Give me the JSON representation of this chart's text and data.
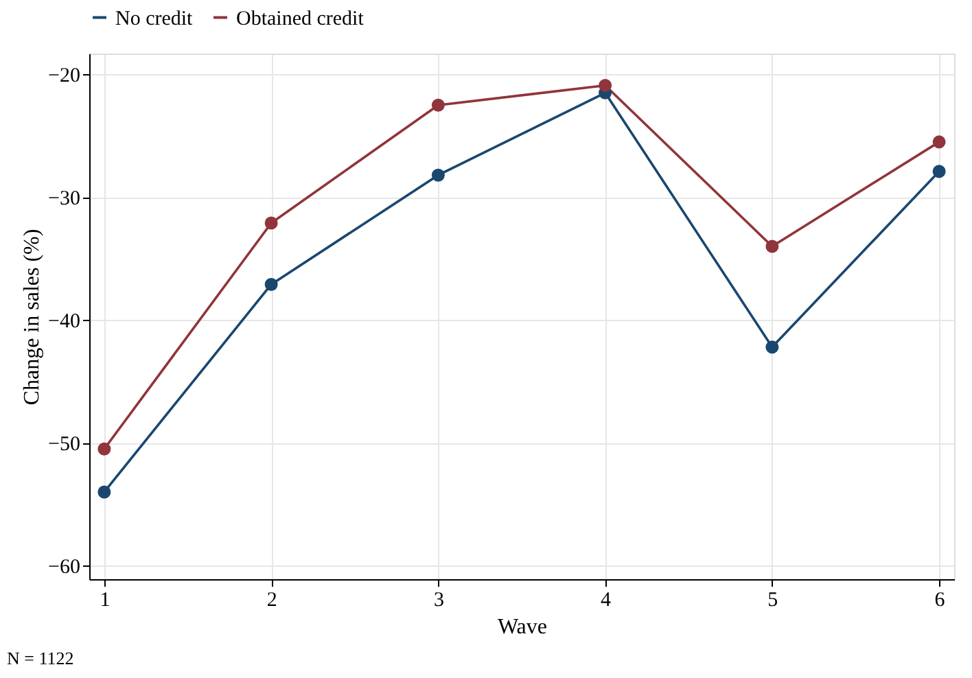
{
  "chart_data": {
    "type": "line",
    "xlabel": "Wave",
    "ylabel": "Change in sales (%)",
    "x": [
      1,
      2,
      3,
      4,
      5,
      6
    ],
    "series": [
      {
        "name": "No credit",
        "color": "#1a476f",
        "values": [
          -54.0,
          -37.1,
          -28.2,
          -21.5,
          -42.2,
          -27.9
        ]
      },
      {
        "name": "Obtained credit",
        "color": "#90353b",
        "values": [
          -50.5,
          -32.1,
          -22.5,
          -20.9,
          -34.0,
          -25.5
        ]
      }
    ],
    "xlim": [
      0.91,
      6.09
    ],
    "xticks": [
      1,
      2,
      3,
      4,
      5,
      6
    ],
    "ylim": [
      -61.1,
      -18.3
    ],
    "yticks": [
      -60,
      -50,
      -40,
      -30,
      -20
    ],
    "grid": true,
    "legend": "top",
    "marker": "circle",
    "line_style": "solid",
    "annotations": [
      "N = 1122"
    ]
  }
}
